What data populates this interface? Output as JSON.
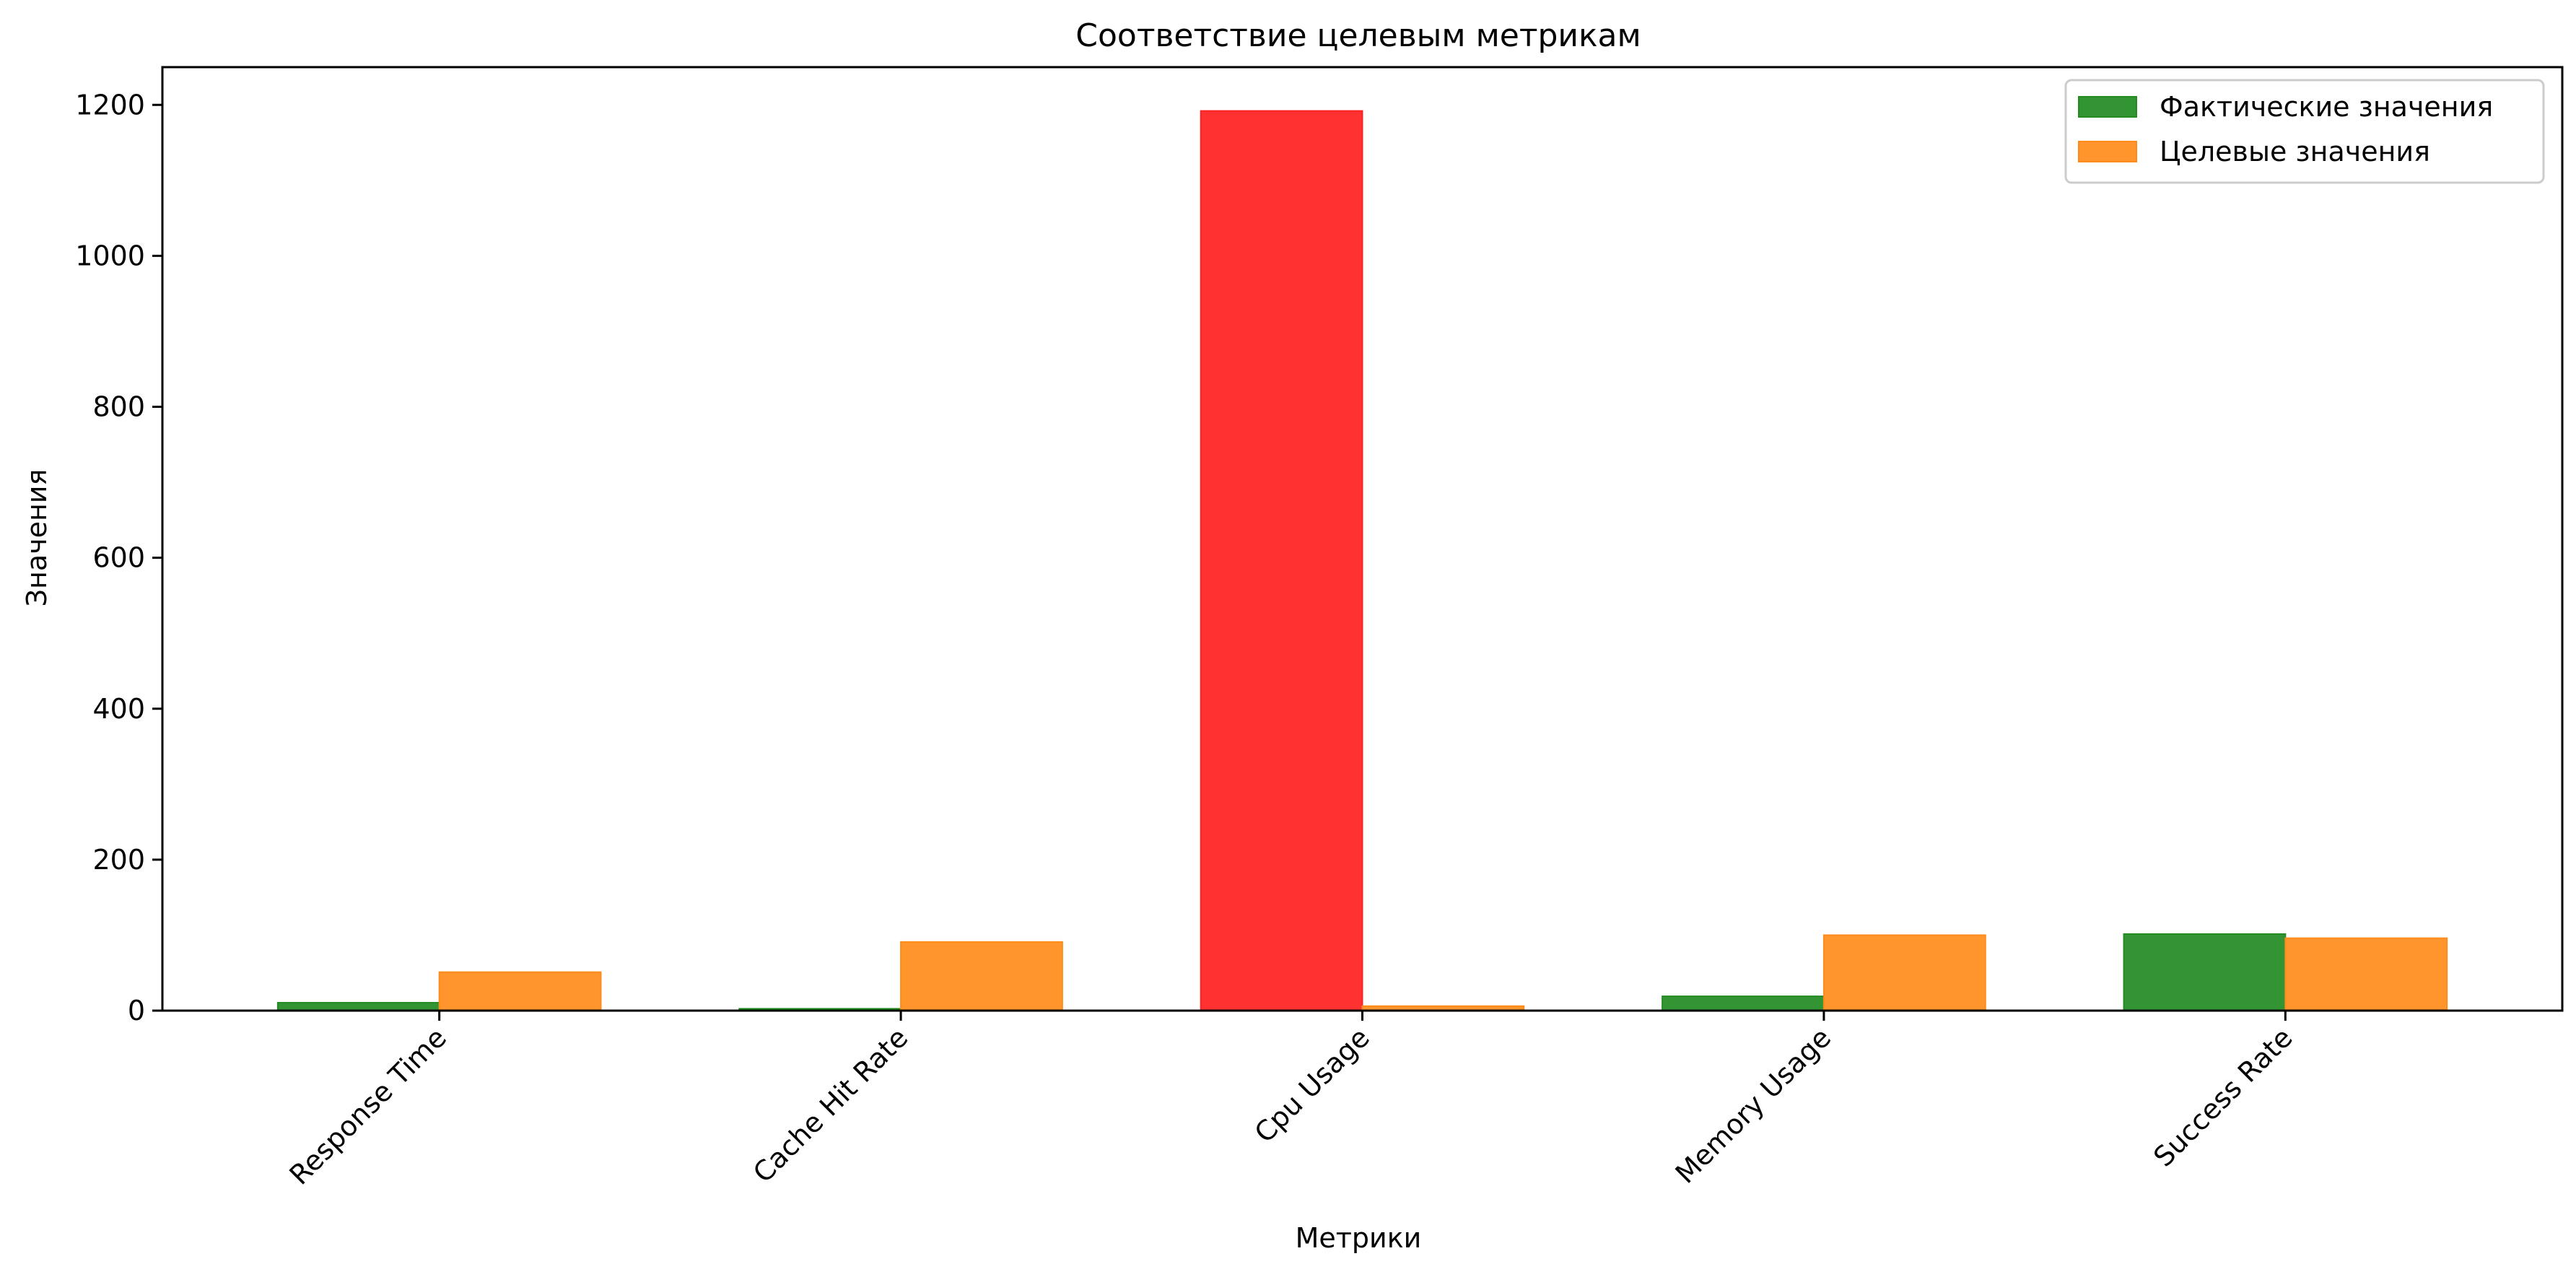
{
  "chart_data": {
    "type": "bar",
    "title": "Соответствие целевым метрикам",
    "xlabel": "Метрики",
    "ylabel": "Значения",
    "categories": [
      "Response Time",
      "Cache Hit Rate",
      "Cpu Usage",
      "Memory Usage",
      "Success Rate"
    ],
    "series": [
      {
        "name": "Фактические значения",
        "values": [
          10.5,
          2.5,
          1192,
          19,
          101.5
        ],
        "colors": [
          "#228b22",
          "#228b22",
          "#ff2020",
          "#228b22",
          "#228b22"
        ]
      },
      {
        "name": "Целевые значения",
        "values": [
          51,
          91,
          6,
          100,
          96
        ],
        "colors": [
          "#ff8c1a",
          "#ff8c1a",
          "#ff8c1a",
          "#ff8c1a",
          "#ff8c1a"
        ]
      }
    ],
    "legend_colors": [
      "#228b22",
      "#ff8c1a"
    ],
    "yticks": [
      0,
      200,
      400,
      600,
      800,
      1000,
      1200
    ],
    "ylim": [
      0,
      1250
    ],
    "grid": false,
    "legend_position": "top-right"
  }
}
